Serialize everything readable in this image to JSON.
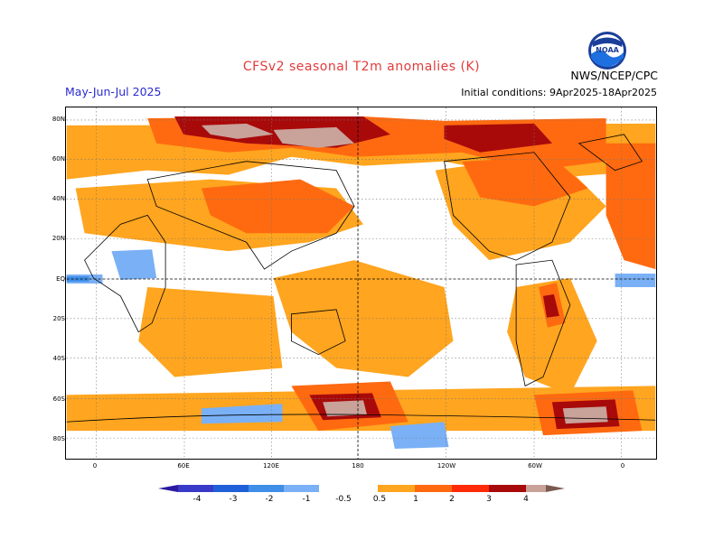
{
  "header": {
    "title": "CFSv2 seasonal T2m anomalies (K)",
    "season": "May-Jun-Jul 2025",
    "initial_conditions": "Initial conditions: 9Apr2025-18Apr2025",
    "agency": "NWS/NCEP/CPC",
    "logo_icon": "noaa-logo-icon",
    "logo_text": "NOAA"
  },
  "colors": {
    "title": "#e23b3b",
    "season": "#2a2ad0",
    "warm": [
      "#ffa51f",
      "#ff6a10",
      "#ff2a08",
      "#a80a0a",
      "#c9a29a",
      "#7a5a50"
    ],
    "cool": [
      "#7ab0f5",
      "#3f8fe8",
      "#2060d8",
      "#3a3ac8",
      "#2a1aa0"
    ]
  },
  "map": {
    "lat_labels": [
      "80N",
      "60N",
      "40N",
      "20N",
      "EQ",
      "20S",
      "40S",
      "60S",
      "80S"
    ],
    "lon_labels": [
      "0",
      "60E",
      "120E",
      "180",
      "120W",
      "60W",
      "0"
    ]
  },
  "colorbar": {
    "labels": [
      "-4",
      "-3",
      "-2",
      "-1",
      "-0.5",
      "0.5",
      "1",
      "2",
      "3",
      "4"
    ]
  }
}
